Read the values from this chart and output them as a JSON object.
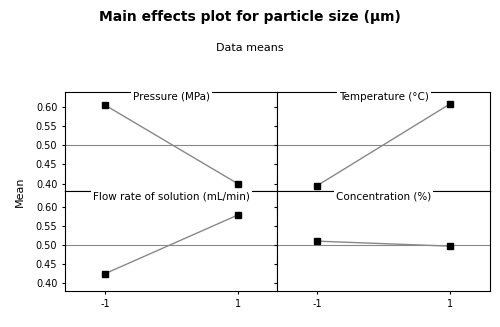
{
  "title": "Main effects plot for particle size (μm)",
  "subtitle": "Data means",
  "ylabel": "Mean",
  "subplots": [
    {
      "title": "Pressure (MPa)",
      "x": [
        -1,
        1
      ],
      "y": [
        0.605,
        0.4
      ]
    },
    {
      "title": "Temperature (°C)",
      "x": [
        -1,
        1
      ],
      "y": [
        0.395,
        0.608
      ]
    },
    {
      "title": "Flow rate of solution (mL/min)",
      "x": [
        -1,
        1
      ],
      "y": [
        0.425,
        0.578
      ]
    },
    {
      "title": "Concentration (%)",
      "x": [
        -1,
        1
      ],
      "y": [
        0.51,
        0.497
      ]
    }
  ],
  "xlim": [
    -1.6,
    1.6
  ],
  "ylim": [
    0.38,
    0.64
  ],
  "yticks": [
    0.4,
    0.45,
    0.5,
    0.55,
    0.6
  ],
  "xticks": [
    -1,
    1
  ],
  "hline_y": 0.5,
  "line_color": "#888888",
  "marker": "s",
  "marker_color": "black",
  "marker_size": 4,
  "background_color": "#ffffff",
  "panel_color": "#ffffff",
  "title_fontsize": 10,
  "subtitle_fontsize": 8,
  "panel_title_fontsize": 7.5,
  "tick_fontsize": 7,
  "ylabel_fontsize": 8
}
